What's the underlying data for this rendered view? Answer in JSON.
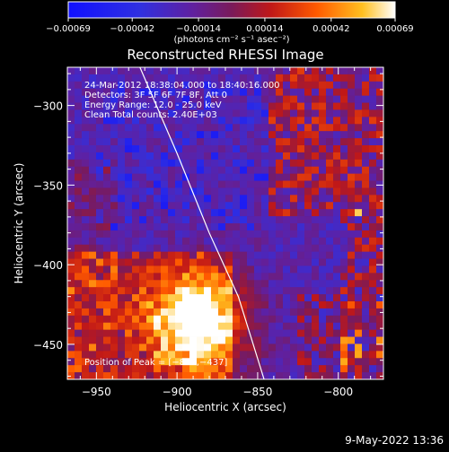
{
  "chart_data": {
    "type": "heatmap",
    "title": "Reconstructed RHESSI Image",
    "xlabel": "Heliocentric X (arcsec)",
    "ylabel": "Heliocentric Y (arcsec)",
    "xlim": [
      -968,
      -772
    ],
    "ylim": [
      -472,
      -276
    ],
    "x_ticks": [
      {
        "value": -950,
        "label": "−950"
      },
      {
        "value": -900,
        "label": "−900"
      },
      {
        "value": -850,
        "label": "−850"
      },
      {
        "value": -800,
        "label": "−800"
      }
    ],
    "y_ticks": [
      {
        "value": -300,
        "label": "−300"
      },
      {
        "value": -350,
        "label": "−350"
      },
      {
        "value": -400,
        "label": "−400"
      },
      {
        "value": -450,
        "label": "−450"
      }
    ],
    "colorbar": {
      "range": [
        -0.00069,
        0.00069
      ],
      "units": "(photons cm⁻² s⁻¹ asec⁻²)",
      "ticks": [
        {
          "value": -0.00069,
          "label": "−0.00069"
        },
        {
          "value": -0.00042,
          "label": "−0.00042"
        },
        {
          "value": -0.00014,
          "label": "−0.00014"
        },
        {
          "value": 0.00014,
          "label": "0.00014"
        },
        {
          "value": 0.00042,
          "label": "0.00042"
        },
        {
          "value": 0.00069,
          "label": "0.00069"
        }
      ],
      "colormap": "blue-purple-red-orange-yellow-white"
    },
    "annotations": [
      "24-Mar-2012 18:38:04.000 to 18:40:16.000",
      "Detectors: 3F 5F 6F 7F 8F, Att 0",
      "Energy Range: 12.0 - 25.0 keV",
      "Clean     Total counts: 2.40E+03"
    ],
    "peak_label": "Position of Peak = [−887,−437]",
    "peak": {
      "x": -887,
      "y": -437
    },
    "limb_curve": [
      {
        "x": -923,
        "y": -276
      },
      {
        "x": -900,
        "y": -330
      },
      {
        "x": -880,
        "y": -380
      },
      {
        "x": -862,
        "y": -420
      },
      {
        "x": -846,
        "y": -472
      }
    ],
    "grid": false
  },
  "footer": {
    "date": "9-May-2022 13:36"
  }
}
